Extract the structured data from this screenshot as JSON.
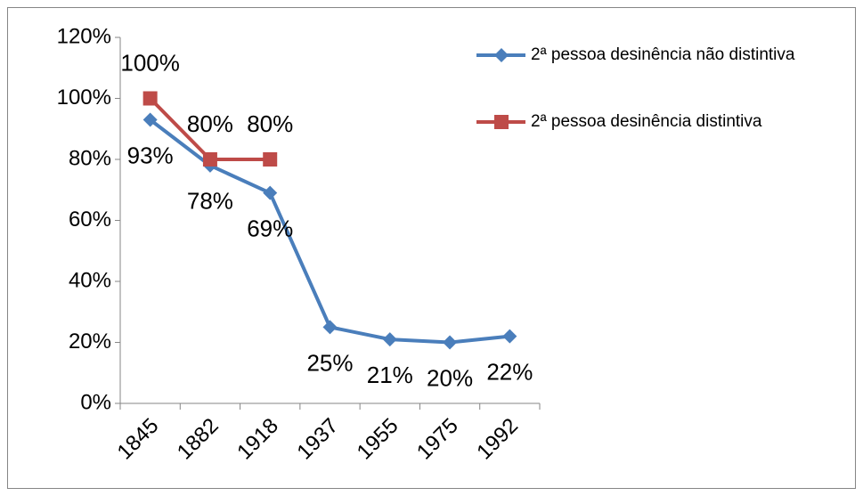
{
  "chart_data": {
    "type": "line",
    "categories": [
      "1845",
      "1882",
      "1918",
      "1937",
      "1955",
      "1975",
      "1992"
    ],
    "series": [
      {
        "name": "2ª pessoa desinência não distintiva",
        "color": "#4a7ebb",
        "marker": "diamond",
        "values": [
          93,
          78,
          69,
          25,
          21,
          20,
          22
        ],
        "value_labels": [
          "93%",
          "78%",
          "69%",
          "25%",
          "21%",
          "20%",
          "22%"
        ]
      },
      {
        "name": "2ª pessoa desinência distintiva",
        "color": "#be4b48",
        "marker": "square",
        "values": [
          100,
          80,
          80,
          null,
          null,
          null,
          null
        ],
        "value_labels": [
          "100%",
          "80%",
          "80%",
          null,
          null,
          null,
          null
        ]
      }
    ],
    "ylim": [
      0,
      120
    ],
    "yticks": [
      {
        "value": 0,
        "label": "0%"
      },
      {
        "value": 20,
        "label": "20%"
      },
      {
        "value": 40,
        "label": "40%"
      },
      {
        "value": 60,
        "label": "60%"
      },
      {
        "value": 80,
        "label": "80%"
      },
      {
        "value": 100,
        "label": "100%"
      },
      {
        "value": 120,
        "label": "120%"
      }
    ],
    "legend": "right"
  }
}
